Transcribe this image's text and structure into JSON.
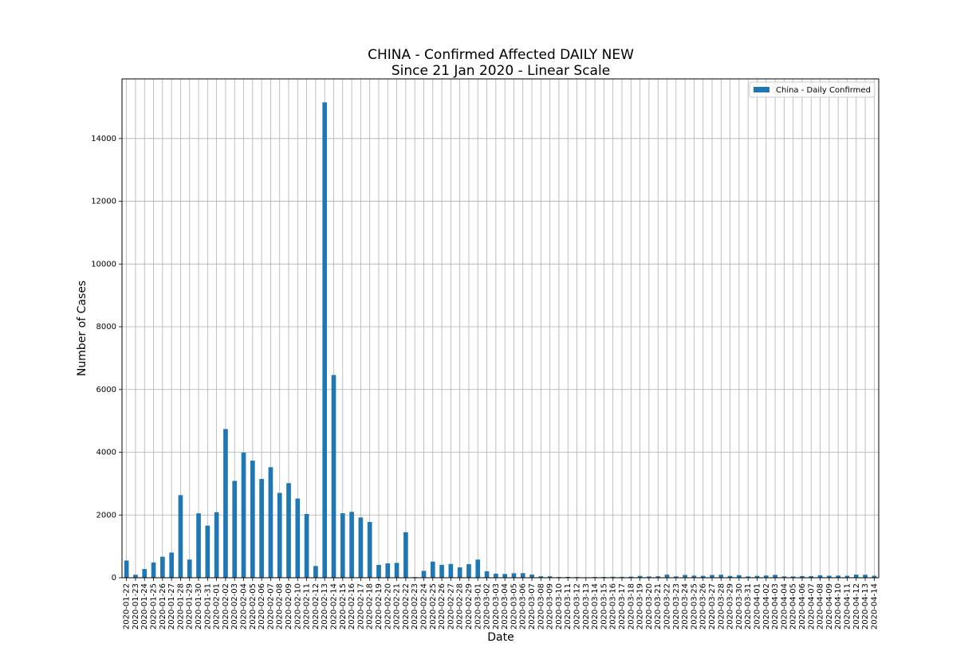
{
  "chart_data": {
    "type": "bar",
    "title": "CHINA - Confirmed Affected DAILY NEW",
    "subtitle": "Since 21 Jan 2020 - Linear Scale",
    "xlabel": "Date",
    "ylabel": "Number of Cases",
    "ylim": [
      0,
      15900
    ],
    "yticks": [
      0,
      2000,
      4000,
      6000,
      8000,
      10000,
      12000,
      14000
    ],
    "grid": true,
    "legend_position": "top-right",
    "bar_color": "#1f77b4",
    "categories": [
      "2020-01-22",
      "2020-01-23",
      "2020-01-24",
      "2020-01-25",
      "2020-01-26",
      "2020-01-27",
      "2020-01-28",
      "2020-01-29",
      "2020-01-30",
      "2020-01-31",
      "2020-02-01",
      "2020-02-02",
      "2020-02-03",
      "2020-02-04",
      "2020-02-05",
      "2020-02-06",
      "2020-02-07",
      "2020-02-08",
      "2020-02-09",
      "2020-02-10",
      "2020-02-11",
      "2020-02-12",
      "2020-02-13",
      "2020-02-14",
      "2020-02-15",
      "2020-02-16",
      "2020-02-17",
      "2020-02-18",
      "2020-02-19",
      "2020-02-20",
      "2020-02-21",
      "2020-02-22",
      "2020-02-23",
      "2020-02-24",
      "2020-02-25",
      "2020-02-26",
      "2020-02-27",
      "2020-02-28",
      "2020-02-29",
      "2020-03-01",
      "2020-03-02",
      "2020-03-03",
      "2020-03-04",
      "2020-03-05",
      "2020-03-06",
      "2020-03-07",
      "2020-03-08",
      "2020-03-09",
      "2020-03-10",
      "2020-03-11",
      "2020-03-12",
      "2020-03-13",
      "2020-03-14",
      "2020-03-15",
      "2020-03-16",
      "2020-03-17",
      "2020-03-18",
      "2020-03-19",
      "2020-03-20",
      "2020-03-21",
      "2020-03-22",
      "2020-03-23",
      "2020-03-24",
      "2020-03-25",
      "2020-03-26",
      "2020-03-27",
      "2020-03-28",
      "2020-03-29",
      "2020-03-30",
      "2020-03-31",
      "2020-04-01",
      "2020-04-02",
      "2020-04-03",
      "2020-04-04",
      "2020-04-05",
      "2020-04-06",
      "2020-04-07",
      "2020-04-08",
      "2020-04-09",
      "2020-04-10",
      "2020-04-11",
      "2020-04-12",
      "2020-04-13",
      "2020-04-14"
    ],
    "series": [
      {
        "name": "China - Daily Confirmed",
        "values": [
          548,
          95,
          277,
          486,
          669,
          802,
          2632,
          578,
          2054,
          1661,
          2089,
          4739,
          3086,
          3991,
          3733,
          3147,
          3523,
          2704,
          3015,
          2525,
          2032,
          373,
          15152,
          6461,
          2055,
          2100,
          1921,
          1777,
          408,
          458,
          473,
          1451,
          21,
          219,
          513,
          410,
          439,
          331,
          433,
          578,
          206,
          130,
          120,
          143,
          146,
          102,
          46,
          45,
          23,
          27,
          23,
          15,
          24,
          26,
          30,
          27,
          34,
          58,
          41,
          46,
          98,
          42,
          89,
          67,
          60,
          88,
          95,
          58,
          81,
          42,
          60,
          71,
          91,
          44,
          42,
          54,
          53,
          78,
          63,
          69,
          63,
          99,
          95,
          63
        ]
      }
    ]
  }
}
